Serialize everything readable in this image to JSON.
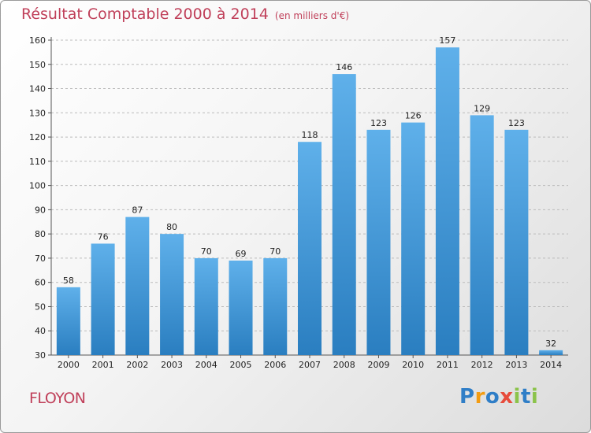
{
  "chart_data": {
    "type": "bar",
    "title": "Résultat Comptable 2000 à 2014",
    "subtitle": "(en milliers d'€)",
    "categories": [
      "2000",
      "2001",
      "2002",
      "2003",
      "2004",
      "2005",
      "2006",
      "2007",
      "2008",
      "2009",
      "2010",
      "2011",
      "2012",
      "2013",
      "2014"
    ],
    "values": [
      58,
      76,
      87,
      80,
      70,
      69,
      70,
      118,
      146,
      123,
      126,
      157,
      129,
      123,
      32
    ],
    "ylim": [
      30,
      160
    ],
    "yticks": [
      30,
      40,
      50,
      60,
      70,
      80,
      90,
      100,
      110,
      120,
      130,
      140,
      150,
      160
    ],
    "grid": true,
    "bar_color": "#5aa9e3"
  },
  "place_name": "FLOYON",
  "logo": {
    "letters": [
      "P",
      "r",
      "o",
      "x",
      "i",
      "t",
      "i"
    ],
    "colors": [
      "#2f7ec7",
      "#f39c12",
      "#2f7ec7",
      "#e74c3c",
      "#8bc34a",
      "#2f7ec7",
      "#8bc34a"
    ]
  },
  "colors": {
    "title": "#c0405a",
    "place": "#c0405a"
  }
}
